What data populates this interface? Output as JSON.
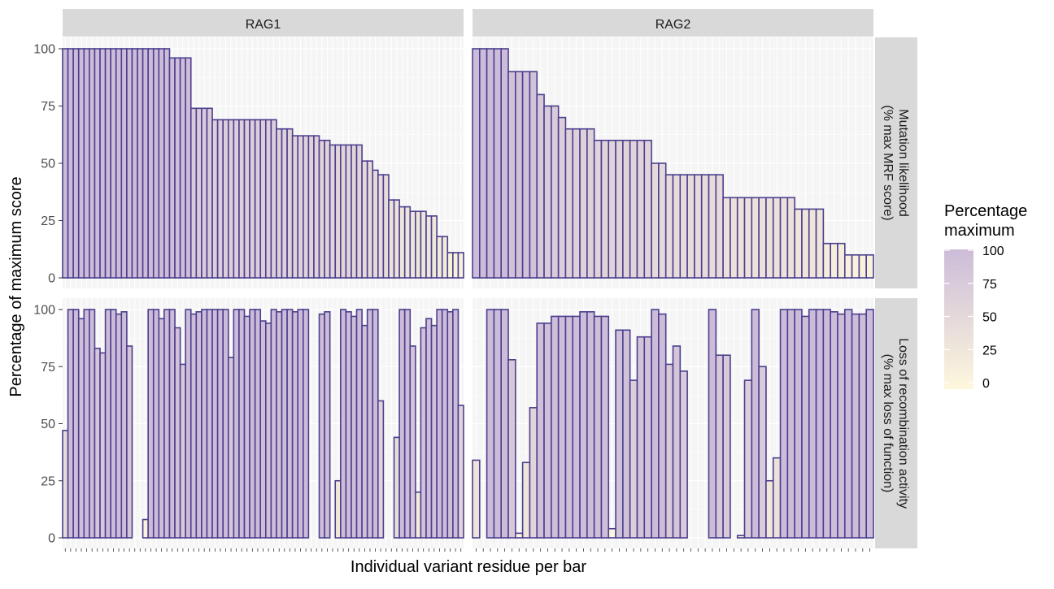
{
  "chart_data": {
    "type": "bar",
    "facet_columns": [
      "RAG1",
      "RAG2"
    ],
    "facet_rows": [
      "Mutation likelihood\n(% max MRF score)",
      "Loss of recombination activity\n(% max loss of function)"
    ],
    "xlabel": "Individual variant residue per bar",
    "ylabel": "Percentage of maximum score",
    "ylim": [
      0,
      100
    ],
    "yticks": [
      0,
      25,
      50,
      75,
      100
    ],
    "legend": {
      "title": "Percentage\nmaximum",
      "ticks": [
        0,
        25,
        50,
        75,
        100
      ],
      "placement": "right",
      "low_color": "#fdf7dc",
      "high_color": "#cdbcd9"
    },
    "bar_outline_color": "#4b3f8e",
    "strip_color": "#d9d9d9",
    "panel_color": "#f5f5f5",
    "panels": [
      {
        "column": "RAG1",
        "row": 0,
        "values": [
          100,
          100,
          100,
          100,
          100,
          100,
          100,
          100,
          100,
          100,
          100,
          100,
          100,
          100,
          100,
          100,
          100,
          100,
          100,
          100,
          96,
          96,
          96,
          96,
          74,
          74,
          74,
          74,
          69,
          69,
          69,
          69,
          69,
          69,
          69,
          69,
          69,
          69,
          69,
          69,
          65,
          65,
          65,
          62,
          62,
          62,
          62,
          62,
          60,
          60,
          58,
          58,
          58,
          58,
          58,
          58,
          51,
          51,
          47,
          45,
          45,
          34,
          34,
          31,
          31,
          29,
          29,
          29,
          27,
          27,
          18,
          18,
          11,
          11,
          11
        ]
      },
      {
        "column": "RAG2",
        "row": 0,
        "values": [
          100,
          100,
          100,
          100,
          100,
          90,
          90,
          90,
          90,
          80,
          75,
          75,
          70,
          65,
          65,
          65,
          65,
          60,
          60,
          60,
          60,
          60,
          60,
          60,
          60,
          50,
          50,
          45,
          45,
          45,
          45,
          45,
          45,
          45,
          45,
          35,
          35,
          35,
          35,
          35,
          35,
          35,
          35,
          35,
          35,
          30,
          30,
          30,
          30,
          15,
          15,
          15,
          10,
          10,
          10,
          10
        ]
      },
      {
        "column": "RAG1",
        "row": 1,
        "values": [
          47,
          100,
          100,
          96,
          100,
          100,
          83,
          81,
          100,
          100,
          98,
          99,
          84,
          0,
          0,
          8,
          100,
          100,
          96,
          100,
          100,
          92,
          76,
          100,
          98,
          99,
          100,
          100,
          100,
          100,
          100,
          79,
          100,
          100,
          97,
          100,
          100,
          95,
          94,
          100,
          99,
          100,
          100,
          99,
          100,
          100,
          0,
          0,
          98,
          99,
          0,
          25,
          100,
          99,
          97,
          100,
          93,
          100,
          100,
          60,
          0,
          0,
          44,
          100,
          100,
          84,
          20,
          92,
          96,
          93,
          100,
          100,
          99,
          100,
          58
        ]
      },
      {
        "column": "RAG2",
        "row": 1,
        "values": [
          34,
          0,
          100,
          100,
          100,
          78,
          2,
          33,
          57,
          94,
          94,
          97,
          97,
          97,
          97,
          99,
          99,
          97,
          97,
          4,
          91,
          91,
          69,
          88,
          88,
          100,
          98,
          76,
          84,
          73,
          0,
          0,
          0,
          100,
          80,
          80,
          0,
          1,
          69,
          100,
          75,
          25,
          35,
          100,
          100,
          100,
          97,
          100,
          100,
          100,
          99,
          98,
          100,
          98,
          98,
          100
        ]
      }
    ]
  }
}
